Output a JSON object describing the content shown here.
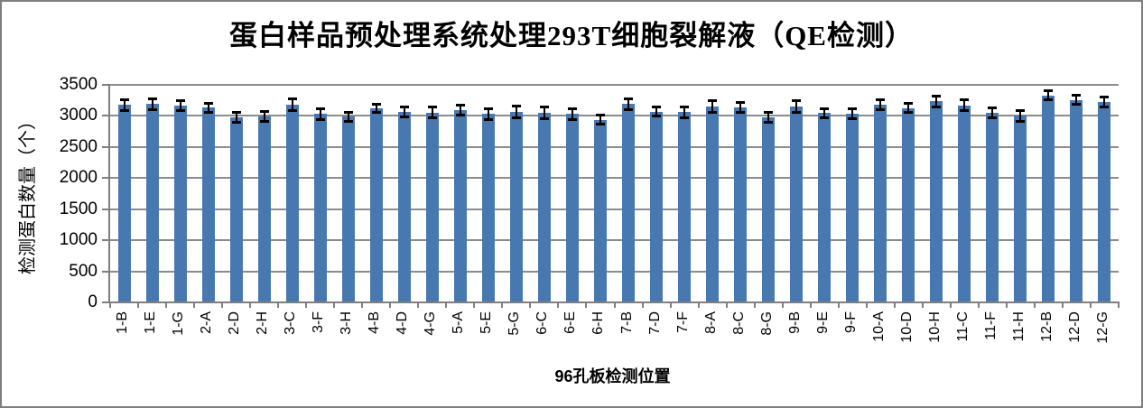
{
  "window": {
    "background_color": "#FFFFFF",
    "border_color": "#7F7F7F"
  },
  "chart_data": {
    "type": "bar",
    "title": "蛋白样品预处理系统处理293T细胞裂解液（QE检测）",
    "xlabel": "96孔板检测位置",
    "ylabel": "检测蛋白数量（个）",
    "categories": [
      "1-B",
      "1-E",
      "1-G",
      "2-A",
      "2-D",
      "2-H",
      "3-C",
      "3-F",
      "3-H",
      "4-B",
      "4-D",
      "4-G",
      "5-A",
      "5-E",
      "5-G",
      "6-C",
      "6-E",
      "6-H",
      "7-B",
      "7-D",
      "7-F",
      "8-A",
      "8-C",
      "8-G",
      "9-B",
      "9-E",
      "9-F",
      "10-A",
      "10-D",
      "10-H",
      "11-C",
      "11-F",
      "11-H",
      "12-B",
      "12-D",
      "12-G"
    ],
    "values": [
      3160,
      3175,
      3155,
      3120,
      2960,
      2980,
      3170,
      3015,
      2975,
      3105,
      3050,
      3040,
      3075,
      3015,
      3050,
      3035,
      3015,
      2920,
      3175,
      3050,
      3045,
      3135,
      3125,
      2965,
      3135,
      3030,
      3020,
      3165,
      3115,
      3220,
      3155,
      3035,
      2985,
      3315,
      3245,
      3210
    ],
    "error_bars": [
      90,
      95,
      85,
      80,
      85,
      90,
      100,
      95,
      80,
      75,
      90,
      90,
      85,
      90,
      100,
      95,
      100,
      80,
      95,
      80,
      90,
      100,
      85,
      90,
      100,
      75,
      85,
      90,
      80,
      95,
      95,
      85,
      90,
      80,
      85,
      90
    ],
    "ylim": [
      0,
      3500
    ],
    "yticks": [
      0,
      500,
      1000,
      1500,
      2000,
      2500,
      3000,
      3500
    ],
    "grid": "horizontal-on",
    "legend": "none",
    "bar_color": "#4878B0",
    "grid_color": "#8C8C8C",
    "axis_color": "#7F7F7F",
    "error_bar_color": "#000000",
    "text_color": "#000000"
  }
}
